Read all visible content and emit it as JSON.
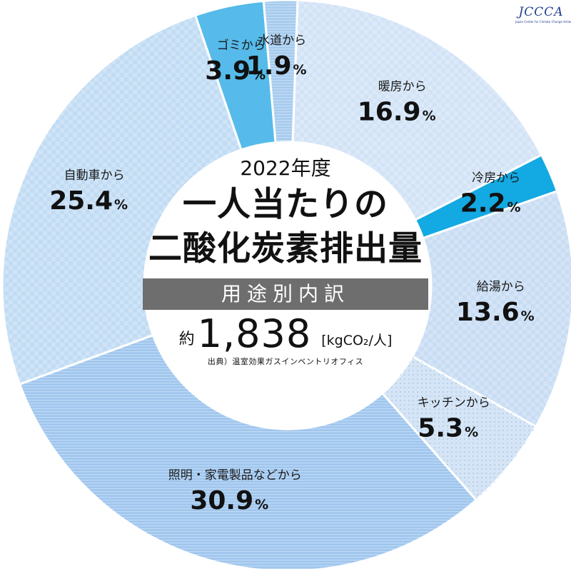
{
  "chart_data": {
    "type": "pie",
    "title": "2022年度",
    "title_lines": [
      "一人当たりの",
      "二酸化炭素排出量"
    ],
    "subtitle": "用途別内訳",
    "total": {
      "prefix": "約",
      "value": "1,838",
      "unit": "[kgCO₂/人]"
    },
    "source": "出典）温室効果ガスインベントリオフィス",
    "unit_symbol": "%",
    "slices": [
      {
        "label": "暖房から",
        "value": 16.9,
        "value_text": "16.9",
        "color": "#d2e3f6"
      },
      {
        "label": "冷房から",
        "value": 2.2,
        "value_text": "2.2",
        "color": "#13a9e3"
      },
      {
        "label": "給湯から",
        "value": 13.6,
        "value_text": "13.6",
        "color": "#c8ddf3"
      },
      {
        "label": "キッチンから",
        "value": 5.3,
        "value_text": "5.3",
        "color": "#d5e5f6"
      },
      {
        "label": "照明・家電製品などから",
        "value": 30.9,
        "value_text": "30.9",
        "color": "#9fc6ee"
      },
      {
        "label": "自動車から",
        "value": 25.4,
        "value_text": "25.4",
        "color": "#c1dcf4"
      },
      {
        "label": "ゴミから",
        "value": 3.9,
        "value_text": "3.9",
        "color": "#56bbea"
      },
      {
        "label": "水道から",
        "value": 1.9,
        "value_text": "1.9",
        "color": "#a6cbee"
      }
    ]
  },
  "logo": {
    "text": "JCCCA",
    "sub": "Japan Center for Climate Change Actions"
  }
}
